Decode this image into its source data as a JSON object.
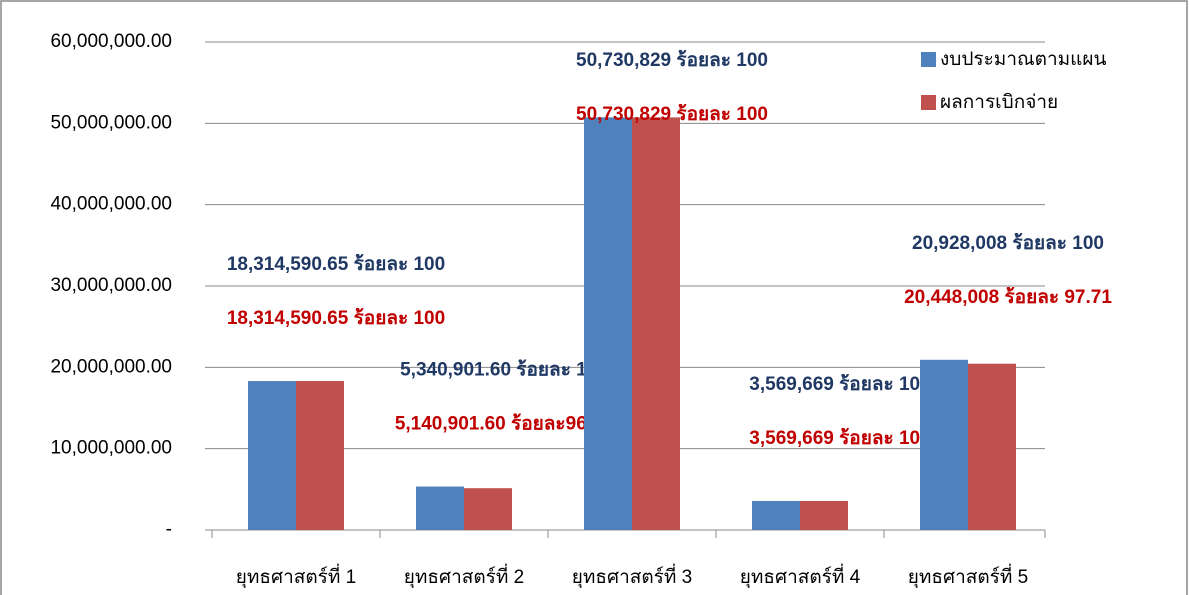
{
  "chart_data": {
    "type": "bar",
    "categories": [
      "ยุทธศาสตร์ที่ 1",
      "ยุทธศาสตร์ที่ 2",
      "ยุทธศาสตร์ที่ 3",
      "ยุทธศาสตร์ที่ 4",
      "ยุทธศาสตร์ที่ 5"
    ],
    "series": [
      {
        "name": "งบประมาณตามแผน",
        "color": "#4f81bd",
        "label_color": "#1f3864",
        "values": [
          18314590.65,
          5340901.6,
          50730829,
          3569669,
          20928008
        ],
        "value_labels": [
          "18,314,590.65 ร้อยละ 100",
          "5,340,901.60 ร้อยละ 100",
          "50,730,829 ร้อยละ 100",
          "3,569,669 ร้อยละ 100",
          "20,928,008 ร้อยละ 100"
        ]
      },
      {
        "name": "ผลการเบิกจ่าย",
        "color": "#c0504d",
        "label_color": "#c00000",
        "values": [
          18314590.65,
          5140901.6,
          50730829,
          3569669,
          20448008
        ],
        "value_labels": [
          "18,314,590.65 ร้อยละ 100",
          "5,140,901.60 ร้อยละ96.26",
          "50,730,829 ร้อยละ 100",
          "3,569,669 ร้อยละ 100",
          "20,448,008 ร้อยละ 97.71"
        ]
      }
    ],
    "ylim": [
      0,
      60000000
    ],
    "yticks": [
      {
        "value": 0,
        "label": "-"
      },
      {
        "value": 10000000,
        "label": "10,000,000.00"
      },
      {
        "value": 20000000,
        "label": "20,000,000.00"
      },
      {
        "value": 30000000,
        "label": "30,000,000.00"
      },
      {
        "value": 40000000,
        "label": "40,000,000.00"
      },
      {
        "value": 50000000,
        "label": "50,000,000.00"
      },
      {
        "value": 60000000,
        "label": "60,000,000.00"
      }
    ],
    "grid": true,
    "legend": "top-right"
  }
}
